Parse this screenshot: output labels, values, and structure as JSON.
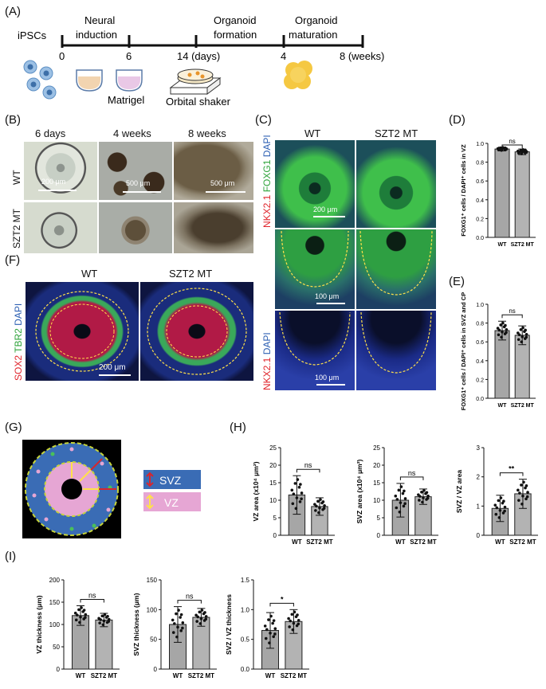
{
  "panels": {
    "A": "(A)",
    "B": "(B)",
    "C": "(C)",
    "D": "(D)",
    "E": "(E)",
    "F": "(F)",
    "G": "(G)",
    "H": "(H)",
    "I": "(I)"
  },
  "timeline": {
    "stages": [
      "iPSCs",
      "Neural\ninduction",
      "Organoid\nformation",
      "Organoid\nmaturation"
    ],
    "ticks": [
      "0",
      "6",
      "14 (days)",
      "4",
      "8 (weeks)"
    ],
    "notes": [
      "Matrigel",
      "Orbital shaker"
    ]
  },
  "panelB": {
    "cols": [
      "6 days",
      "4 weeks",
      "8 weeks"
    ],
    "rows": [
      "WT",
      "SZT2 MT"
    ],
    "scales": [
      "200 μm",
      "500 μm",
      "500 μm"
    ]
  },
  "panelC": {
    "cols": [
      "WT",
      "SZT2 MT"
    ],
    "rowlabels": [
      [
        "NKX2.1 ",
        "FOXG1 ",
        "DAPI"
      ],
      [
        "NKX2.1 ",
        "DAPI"
      ]
    ],
    "scales": [
      "200 μm",
      "100 μm",
      "100 μm"
    ]
  },
  "panelF": {
    "cols": [
      "WT",
      "SZT2 MT"
    ],
    "rowlabel": [
      "SOX2 ",
      "TBR2 ",
      "DAPI"
    ],
    "scale": "200 μm"
  },
  "panelG": {
    "legend": [
      "SVZ",
      "VZ"
    ]
  },
  "colors": {
    "wt_bar": "#a6a6a6",
    "bar_edge": "#222222",
    "green": "#2ea33a",
    "red": "#e0242b",
    "blue": "#2c5fb3",
    "svz_blue": "#3a6cb5",
    "vz_pink": "#e6a6d4"
  },
  "chart_data": [
    {
      "id": "D",
      "type": "bar",
      "categories": [
        "WT",
        "SZT2 MT"
      ],
      "values": [
        0.94,
        0.91
      ],
      "err": [
        0.02,
        0.03
      ],
      "ylim": [
        0,
        1.0
      ],
      "yticks": [
        "0.0",
        "0.2",
        "0.4",
        "0.6",
        "0.8",
        "1.0"
      ],
      "ylabel": "FOXG1⁺ cells / DAPI⁺ cells in VZ",
      "sig": "ns"
    },
    {
      "id": "E",
      "type": "bar",
      "categories": [
        "WT",
        "SZT2 MT"
      ],
      "values": [
        0.72,
        0.67
      ],
      "err": [
        0.1,
        0.1
      ],
      "ylim": [
        0,
        1.0
      ],
      "yticks": [
        "0.0",
        "0.2",
        "0.4",
        "0.6",
        "0.8",
        "1.0"
      ],
      "ylabel": "FOXG1⁺ cells / DAPI⁺ cells in SVZ and CP",
      "sig": "ns"
    },
    {
      "id": "H1",
      "type": "bar",
      "categories": [
        "WT",
        "SZT2 MT"
      ],
      "values": [
        11.5,
        8.2
      ],
      "err": [
        5.5,
        2.5
      ],
      "ylim": [
        0,
        25
      ],
      "yticks": [
        "0",
        "5",
        "10",
        "15",
        "20",
        "25"
      ],
      "ylabel": "VZ area (x10⁴ μm²)",
      "sig": "ns"
    },
    {
      "id": "H2",
      "type": "bar",
      "categories": [
        "WT",
        "SZT2 MT"
      ],
      "values": [
        10.0,
        11.0
      ],
      "err": [
        4.8,
        2.2
      ],
      "ylim": [
        0,
        25
      ],
      "yticks": [
        "0",
        "5",
        "10",
        "15",
        "20",
        "25"
      ],
      "ylabel": "SVZ area (x10⁴ μm²)",
      "sig": "ns"
    },
    {
      "id": "H3",
      "type": "bar",
      "categories": [
        "WT",
        "SZT2 MT"
      ],
      "values": [
        0.92,
        1.42
      ],
      "err": [
        0.45,
        0.5
      ],
      "ylim": [
        0,
        3
      ],
      "yticks": [
        "0",
        "1",
        "2",
        "3"
      ],
      "ylabel": "SVZ / VZ area",
      "sig": "**"
    },
    {
      "id": "I1",
      "type": "bar",
      "categories": [
        "WT",
        "SZT2 MT"
      ],
      "values": [
        120,
        110
      ],
      "err": [
        22,
        15
      ],
      "ylim": [
        0,
        200
      ],
      "yticks": [
        "0",
        "50",
        "100",
        "150",
        "200"
      ],
      "ylabel": "VZ thickness (μm)",
      "sig": "ns"
    },
    {
      "id": "I2",
      "type": "bar",
      "categories": [
        "WT",
        "SZT2 MT"
      ],
      "values": [
        75,
        87
      ],
      "err": [
        30,
        15
      ],
      "ylim": [
        0,
        150
      ],
      "yticks": [
        "0",
        "50",
        "100",
        "150"
      ],
      "ylabel": "SVZ thickness (μm)",
      "sig": "ns"
    },
    {
      "id": "I3",
      "type": "bar",
      "categories": [
        "WT",
        "SZT2 MT"
      ],
      "values": [
        0.65,
        0.8
      ],
      "err": [
        0.3,
        0.2
      ],
      "ylim": [
        0,
        1.5
      ],
      "yticks": [
        "0.0",
        "0.5",
        "1.0",
        "1.5"
      ],
      "ylabel": "SVZ / VZ thickness",
      "sig": "*"
    }
  ]
}
